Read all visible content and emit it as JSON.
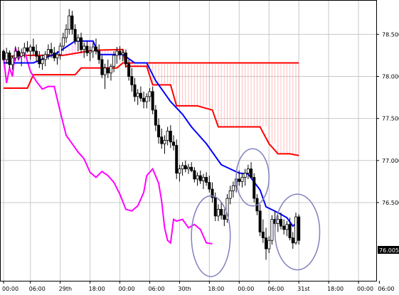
{
  "chart_data": {
    "type": "candlestick",
    "colors": {
      "background": "#ffffff",
      "grid": "#c8c8c8",
      "bull_body": "#ffffff",
      "bear_body": "#000000",
      "wick": "#000000",
      "cloud_line": "#ff0000",
      "cloud_fill": "#ff8080",
      "base_line": "#0000ff",
      "lagging_line": "#ff00ff",
      "circle": "#8080c0",
      "price_tag": "#000000"
    },
    "y_axis": {
      "ticks": [
        "78.500",
        "78.000",
        "77.500",
        "77.000",
        "76.500"
      ],
      "values": [
        78.5,
        78.0,
        77.5,
        77.0,
        76.5
      ],
      "ylim": [
        75.57,
        78.9
      ]
    },
    "x_axis": {
      "ticks": [
        "00:00",
        "06:00",
        "29th",
        "18:00",
        "00:00",
        "06:00",
        "30th",
        "18:00",
        "00:00",
        "06:00",
        "31st",
        "18:00",
        "00:00",
        "06:00"
      ],
      "xlim": [
        0,
        124
      ]
    },
    "current_price": "76.005",
    "candles": [
      [
        0,
        78.3,
        78.32,
        78.18,
        78.2
      ],
      [
        1,
        78.2,
        78.34,
        78.15,
        78.28
      ],
      [
        2,
        78.28,
        78.31,
        78.1,
        78.14
      ],
      [
        3,
        78.14,
        78.25,
        78.08,
        78.22
      ],
      [
        4,
        78.22,
        78.36,
        78.18,
        78.3
      ],
      [
        5,
        78.3,
        78.35,
        78.2,
        78.24
      ],
      [
        6,
        78.24,
        78.33,
        78.12,
        78.28
      ],
      [
        7,
        78.28,
        78.4,
        78.22,
        78.34
      ],
      [
        8,
        78.34,
        78.42,
        78.28,
        78.3
      ],
      [
        9,
        78.3,
        78.38,
        78.2,
        78.35
      ],
      [
        10,
        78.35,
        78.45,
        78.25,
        78.3
      ],
      [
        11,
        78.3,
        78.38,
        78.18,
        78.24
      ],
      [
        12,
        78.24,
        78.3,
        78.1,
        78.15
      ],
      [
        13,
        78.15,
        78.26,
        78.08,
        78.2
      ],
      [
        14,
        78.2,
        78.3,
        78.12,
        78.26
      ],
      [
        15,
        78.26,
        78.38,
        78.2,
        78.32
      ],
      [
        16,
        78.32,
        78.4,
        78.22,
        78.28
      ],
      [
        17,
        78.28,
        78.35,
        78.18,
        78.22
      ],
      [
        18,
        78.22,
        78.3,
        78.14,
        78.26
      ],
      [
        19,
        78.26,
        78.4,
        78.2,
        78.36
      ],
      [
        20,
        78.36,
        78.52,
        78.3,
        78.46
      ],
      [
        21,
        78.46,
        78.62,
        78.4,
        78.56
      ],
      [
        22,
        78.56,
        78.8,
        78.5,
        78.72
      ],
      [
        23,
        78.72,
        78.78,
        78.5,
        78.56
      ],
      [
        24,
        78.56,
        78.62,
        78.38,
        78.42
      ],
      [
        25,
        78.42,
        78.5,
        78.3,
        78.46
      ],
      [
        26,
        78.46,
        78.52,
        78.28,
        78.32
      ],
      [
        27,
        78.32,
        78.4,
        78.22,
        78.36
      ],
      [
        28,
        78.36,
        78.42,
        78.24,
        78.28
      ],
      [
        29,
        78.28,
        78.36,
        78.18,
        78.3
      ],
      [
        30,
        78.3,
        78.4,
        78.22,
        78.35
      ],
      [
        31,
        78.35,
        78.45,
        78.26,
        78.3
      ],
      [
        32,
        78.3,
        78.38,
        78.15,
        78.2
      ],
      [
        33,
        78.2,
        78.25,
        77.98,
        78.02
      ],
      [
        34,
        78.02,
        78.15,
        77.85,
        78.1
      ],
      [
        35,
        78.1,
        78.2,
        77.98,
        78.04
      ],
      [
        36,
        78.04,
        78.15,
        77.95,
        78.12
      ],
      [
        37,
        78.12,
        78.3,
        78.05,
        78.25
      ],
      [
        38,
        78.25,
        78.35,
        78.15,
        78.3
      ],
      [
        39,
        78.3,
        78.36,
        78.2,
        78.26
      ],
      [
        40,
        78.26,
        78.32,
        78.18,
        78.28
      ],
      [
        41,
        78.28,
        78.32,
        78.1,
        78.15
      ],
      [
        42,
        78.15,
        78.2,
        77.95,
        78.0
      ],
      [
        43,
        78.0,
        78.1,
        77.82,
        77.9
      ],
      [
        44,
        77.9,
        77.98,
        77.7,
        77.76
      ],
      [
        45,
        77.76,
        77.85,
        77.66,
        77.8
      ],
      [
        46,
        77.8,
        77.88,
        77.7,
        77.74
      ],
      [
        47,
        77.74,
        77.82,
        77.62,
        77.7
      ],
      [
        48,
        77.7,
        77.8,
        77.62,
        77.76
      ],
      [
        49,
        77.76,
        77.86,
        77.7,
        77.82
      ],
      [
        50,
        77.82,
        77.88,
        77.55,
        77.6
      ],
      [
        51,
        77.6,
        77.66,
        77.35,
        77.42
      ],
      [
        52,
        77.42,
        77.5,
        77.2,
        77.28
      ],
      [
        53,
        77.28,
        77.38,
        77.14,
        77.2
      ],
      [
        54,
        77.2,
        77.3,
        77.08,
        77.24
      ],
      [
        55,
        77.24,
        77.4,
        77.18,
        77.35
      ],
      [
        56,
        77.35,
        77.42,
        77.15,
        77.22
      ],
      [
        57,
        77.22,
        77.3,
        77.12,
        77.18
      ],
      [
        58,
        77.18,
        77.25,
        76.78,
        76.85
      ],
      [
        59,
        76.85,
        76.95,
        76.75,
        76.9
      ],
      [
        60,
        76.9,
        76.98,
        76.82,
        76.94
      ],
      [
        61,
        76.94,
        77.0,
        76.86,
        76.9
      ],
      [
        62,
        76.9,
        76.96,
        76.84,
        76.92
      ],
      [
        63,
        76.92,
        76.98,
        76.86,
        76.88
      ],
      [
        64,
        76.88,
        76.92,
        76.74,
        76.78
      ],
      [
        65,
        76.78,
        76.86,
        76.7,
        76.82
      ],
      [
        66,
        76.82,
        76.88,
        76.72,
        76.76
      ],
      [
        67,
        76.76,
        76.84,
        76.66,
        76.8
      ],
      [
        68,
        76.8,
        76.86,
        76.7,
        76.74
      ],
      [
        69,
        76.74,
        76.82,
        76.62,
        76.66
      ],
      [
        70,
        76.66,
        76.74,
        76.5,
        76.56
      ],
      [
        71,
        76.56,
        76.62,
        76.28,
        76.34
      ],
      [
        72,
        76.34,
        76.48,
        76.28,
        76.42
      ],
      [
        73,
        76.42,
        76.5,
        76.3,
        76.35
      ],
      [
        74,
        76.35,
        76.42,
        76.22,
        76.3
      ],
      [
        75,
        76.3,
        76.6,
        76.26,
        76.55
      ],
      [
        76,
        76.55,
        76.7,
        76.48,
        76.64
      ],
      [
        77,
        76.64,
        76.75,
        76.56,
        76.7
      ],
      [
        78,
        76.7,
        76.82,
        76.62,
        76.78
      ],
      [
        79,
        76.78,
        76.88,
        76.7,
        76.75
      ],
      [
        80,
        76.75,
        76.85,
        76.68,
        76.8
      ],
      [
        81,
        76.8,
        76.9,
        76.7,
        76.85
      ],
      [
        82,
        76.85,
        76.95,
        76.78,
        76.9
      ],
      [
        83,
        76.9,
        76.98,
        76.82,
        76.8
      ],
      [
        84,
        76.8,
        76.85,
        76.5,
        76.55
      ],
      [
        85,
        76.55,
        76.6,
        76.35,
        76.4
      ],
      [
        86,
        76.4,
        76.48,
        76.1,
        76.15
      ],
      [
        87,
        76.15,
        76.3,
        76.02,
        76.08
      ],
      [
        88,
        76.08,
        76.2,
        75.82,
        75.95
      ],
      [
        89,
        75.95,
        76.1,
        75.9,
        76.05
      ],
      [
        90,
        76.05,
        76.35,
        76.0,
        76.3
      ],
      [
        91,
        76.3,
        76.4,
        76.2,
        76.25
      ],
      [
        92,
        76.25,
        76.35,
        76.15,
        76.3
      ],
      [
        93,
        76.3,
        76.38,
        76.18,
        76.22
      ],
      [
        94,
        76.22,
        76.3,
        76.12,
        76.18
      ],
      [
        95,
        76.18,
        76.28,
        76.1,
        76.24
      ],
      [
        96,
        76.24,
        76.32,
        76.05,
        76.08
      ],
      [
        97,
        76.08,
        76.15,
        75.95,
        76.02
      ],
      [
        98,
        76.02,
        76.38,
        76.0,
        76.33
      ],
      [
        99,
        76.33,
        76.36,
        76.0,
        76.05
      ]
    ],
    "base_line": [
      [
        0,
        78.16
      ],
      [
        10,
        78.16
      ],
      [
        14,
        78.22
      ],
      [
        18,
        78.28
      ],
      [
        24,
        78.42
      ],
      [
        30,
        78.42
      ],
      [
        32,
        78.26
      ],
      [
        40,
        78.26
      ],
      [
        44,
        78.16
      ],
      [
        48,
        78.16
      ],
      [
        51,
        77.95
      ],
      [
        56,
        77.7
      ],
      [
        60,
        77.55
      ],
      [
        63,
        77.4
      ],
      [
        68,
        77.2
      ],
      [
        70,
        77.1
      ],
      [
        73,
        76.95
      ],
      [
        79,
        76.85
      ],
      [
        82,
        76.84
      ],
      [
        86,
        76.65
      ],
      [
        88,
        76.45
      ],
      [
        92,
        76.38
      ],
      [
        95,
        76.32
      ],
      [
        97,
        76.22
      ],
      [
        99,
        76.28
      ]
    ],
    "cloud_upper": [
      [
        0,
        78.24
      ],
      [
        3,
        78.24
      ],
      [
        4,
        78.25
      ],
      [
        20,
        78.25
      ],
      [
        30,
        78.31
      ],
      [
        40,
        78.32
      ],
      [
        41,
        78.12
      ],
      [
        48,
        78.12
      ],
      [
        50,
        77.9
      ],
      [
        56,
        77.9
      ],
      [
        58,
        77.65
      ],
      [
        65,
        77.65
      ],
      [
        70,
        77.6
      ],
      [
        72,
        77.4
      ],
      [
        86,
        77.4
      ],
      [
        89,
        77.2
      ],
      [
        92,
        77.08
      ],
      [
        96,
        77.08
      ],
      [
        99,
        77.06
      ]
    ],
    "cloud_lower": [
      [
        0,
        77.86
      ],
      [
        8,
        77.86
      ],
      [
        10,
        78.02
      ],
      [
        24,
        78.02
      ],
      [
        26,
        78.1
      ],
      [
        38,
        78.1
      ],
      [
        40,
        78.16
      ],
      [
        99,
        78.16
      ]
    ],
    "lagging_line": [
      [
        0,
        78.24
      ],
      [
        1,
        77.92
      ],
      [
        2,
        78.1
      ],
      [
        3,
        78.0
      ],
      [
        4,
        78.34
      ],
      [
        5,
        78.2
      ],
      [
        6,
        78.26
      ],
      [
        7,
        78.3
      ],
      [
        9,
        78.06
      ],
      [
        11,
        77.94
      ],
      [
        13,
        77.85
      ],
      [
        15,
        77.88
      ],
      [
        17,
        77.88
      ],
      [
        19,
        77.58
      ],
      [
        21,
        77.3
      ],
      [
        23,
        77.2
      ],
      [
        25,
        77.1
      ],
      [
        27,
        77.02
      ],
      [
        29,
        76.86
      ],
      [
        31,
        76.8
      ],
      [
        33,
        76.87
      ],
      [
        35,
        76.82
      ],
      [
        37,
        76.74
      ],
      [
        39,
        76.6
      ],
      [
        41,
        76.42
      ],
      [
        43,
        76.4
      ],
      [
        45,
        76.46
      ],
      [
        47,
        76.62
      ],
      [
        48,
        76.82
      ],
      [
        50,
        76.9
      ],
      [
        52,
        76.73
      ],
      [
        53,
        76.52
      ],
      [
        54,
        76.2
      ],
      [
        55,
        76.05
      ],
      [
        56,
        76.02
      ],
      [
        57,
        76.3
      ],
      [
        58,
        76.28
      ],
      [
        60,
        76.3
      ],
      [
        62,
        76.2
      ],
      [
        64,
        76.24
      ],
      [
        66,
        76.18
      ],
      [
        68,
        76.02
      ],
      [
        70,
        76.01
      ]
    ],
    "cloud_hatch_upper": [
      [
        0,
        78.24
      ],
      [
        3,
        78.24
      ],
      [
        4,
        78.25
      ],
      [
        20,
        78.25
      ],
      [
        26,
        78.25
      ],
      [
        30,
        78.31
      ],
      [
        39,
        78.32
      ],
      [
        40,
        78.32
      ]
    ],
    "cloud_hatch_lower": [
      [
        0,
        78.16
      ],
      [
        10,
        78.16
      ],
      [
        14,
        78.22
      ],
      [
        18,
        78.28
      ],
      [
        20,
        78.28
      ],
      [
        24,
        78.42
      ],
      [
        26,
        78.42
      ],
      [
        30,
        78.42
      ],
      [
        32,
        78.26
      ],
      [
        40,
        78.26
      ]
    ],
    "circles": [
      {
        "cx": 69.5,
        "cy": 76.1,
        "rx": 6.5,
        "ry": 0.48
      },
      {
        "cx": 83.5,
        "cy": 76.8,
        "rx": 5.5,
        "ry": 0.34
      },
      {
        "cx": 98.5,
        "cy": 76.15,
        "rx": 7.5,
        "ry": 0.45
      }
    ]
  }
}
